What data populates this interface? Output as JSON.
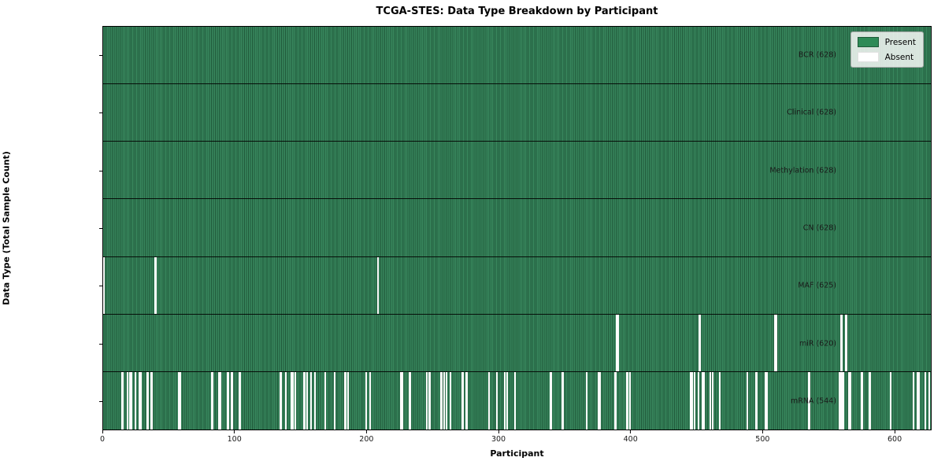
{
  "chart_data": {
    "type": "heatmap",
    "title": "TCGA-STES: Data Type Breakdown by Participant",
    "xlabel": "Participant",
    "ylabel": "Data Type (Total Sample Count)",
    "x_range": [
      0,
      628
    ],
    "x_ticks": [
      0,
      100,
      200,
      300,
      400,
      500,
      600
    ],
    "n_participants": 628,
    "grid": false,
    "colors": {
      "present": "#2e8b57",
      "present_stripe_light": "#38875d",
      "present_stripe_dark": "#20593a",
      "absent": "#ffffff",
      "row_separator": "#000000"
    },
    "legend": {
      "position": "upper right",
      "entries": [
        {
          "label": "Present",
          "color": "#2e8b57"
        },
        {
          "label": "Absent",
          "color": "#ffffff"
        }
      ]
    },
    "rows": [
      {
        "label": "BCR (628)",
        "data_type": "BCR",
        "present_count": 628,
        "absent_count": 0,
        "absent_participants": []
      },
      {
        "label": "Clinical (628)",
        "data_type": "Clinical",
        "present_count": 628,
        "absent_count": 0,
        "absent_participants": []
      },
      {
        "label": "Methylation (628)",
        "data_type": "Methylation",
        "present_count": 628,
        "absent_count": 0,
        "absent_participants": []
      },
      {
        "label": "CN (628)",
        "data_type": "CN",
        "present_count": 628,
        "absent_count": 0,
        "absent_participants": []
      },
      {
        "label": "MAF (625)",
        "data_type": "MAF",
        "present_count": 625,
        "absent_count": 3,
        "absent_participants": [
          0,
          39,
          208
        ]
      },
      {
        "label": "miR (620)",
        "data_type": "miR",
        "present_count": 620,
        "absent_count": 8,
        "absent_participants": [
          389,
          390,
          452,
          509,
          510,
          559,
          560,
          563
        ]
      },
      {
        "label": "mRNA (544)",
        "data_type": "mRNA",
        "present_count": 544,
        "absent_count": 84,
        "absent_participants": [
          14,
          18,
          20,
          21,
          24,
          27,
          28,
          33,
          36,
          57,
          58,
          82,
          87,
          88,
          94,
          97,
          103,
          134,
          138,
          142,
          143,
          145,
          152,
          154,
          157,
          160,
          168,
          175,
          183,
          185,
          199,
          202,
          225,
          226,
          232,
          245,
          247,
          256,
          258,
          260,
          263,
          272,
          275,
          292,
          298,
          304,
          306,
          312,
          339,
          348,
          366,
          375,
          376,
          388,
          397,
          399,
          445,
          446,
          448,
          451,
          454,
          455,
          460,
          462,
          467,
          488,
          495,
          502,
          503,
          535,
          558,
          559,
          560,
          561,
          565,
          566,
          575,
          581,
          597,
          614,
          617,
          618,
          623,
          626
        ]
      }
    ]
  }
}
